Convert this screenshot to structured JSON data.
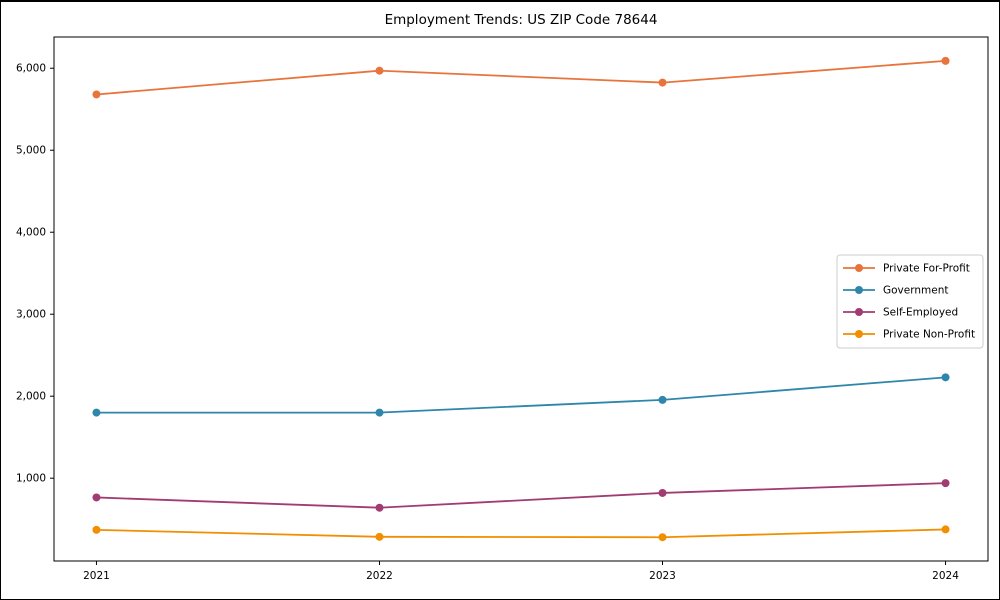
{
  "chart_data": {
    "type": "line",
    "title": "Employment Trends: US ZIP Code 78644",
    "x": [
      2021,
      2022,
      2023,
      2024
    ],
    "x_tick_labels": [
      "2021",
      "2022",
      "2023",
      "2024"
    ],
    "series": [
      {
        "name": "Private For-Profit",
        "color": "#E8743B",
        "values": [
          5680,
          5970,
          5825,
          6090
        ]
      },
      {
        "name": "Government",
        "color": "#2E86AB",
        "values": [
          1800,
          1800,
          1955,
          2230
        ]
      },
      {
        "name": "Self-Employed",
        "color": "#A23B72",
        "values": [
          765,
          640,
          820,
          940
        ]
      },
      {
        "name": "Private Non-Profit",
        "color": "#F18F01",
        "values": [
          370,
          285,
          280,
          375
        ]
      }
    ],
    "y_ticks": [
      1000,
      2000,
      3000,
      4000,
      5000,
      6000
    ],
    "y_tick_labels": [
      "1,000",
      "2,000",
      "3,000",
      "4,000",
      "5,000",
      "6,000"
    ],
    "xlabel": "",
    "ylabel": "",
    "xlim": [
      2020.85,
      2024.15
    ],
    "ylim": [
      -10,
      6381
    ],
    "grid": false,
    "marker": "circle",
    "line_width": 1.8,
    "marker_radius": 4,
    "axis_color": "#000000",
    "background": "#ffffff",
    "legend": {
      "position": "center-right",
      "border_color": "#cccccc",
      "entries": [
        "Private For-Profit",
        "Government",
        "Self-Employed",
        "Private Non-Profit"
      ]
    }
  }
}
